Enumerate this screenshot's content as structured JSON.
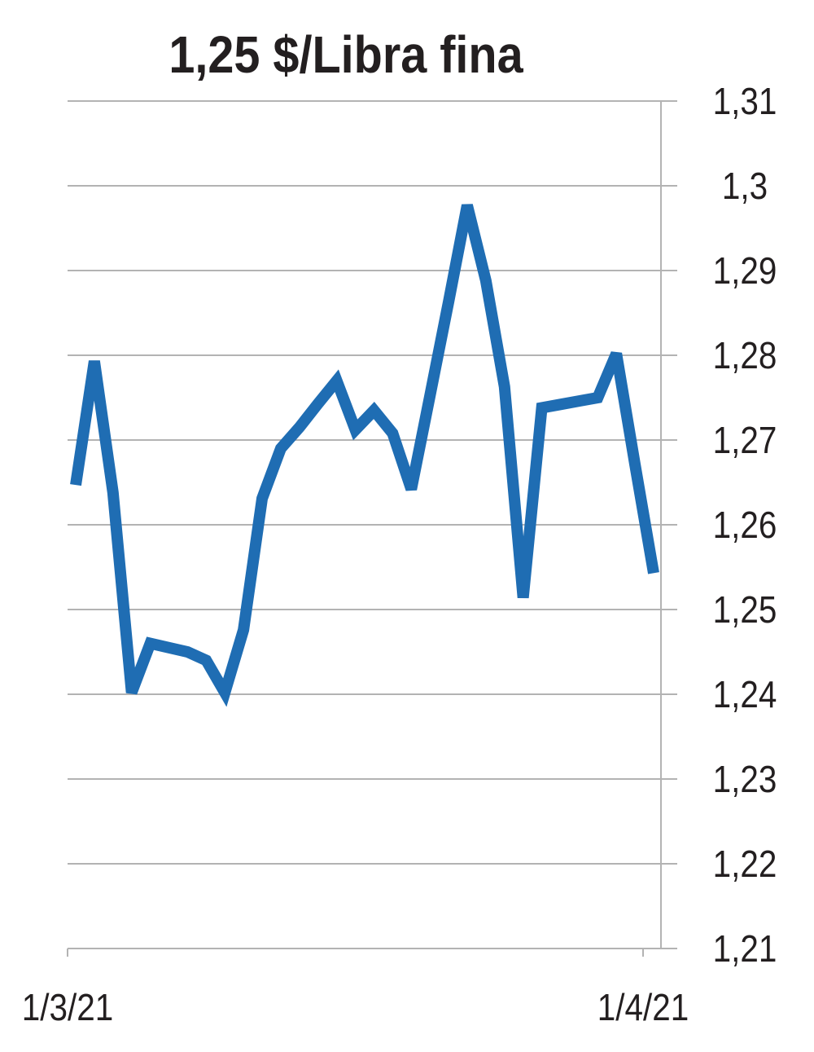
{
  "chart_data": {
    "type": "line",
    "title": "1,25 $/Libra fina",
    "categories": [
      "1/3/21",
      null,
      null,
      null,
      null,
      null,
      null,
      null,
      null,
      null,
      null,
      null,
      null,
      null,
      null,
      null,
      null,
      null,
      null,
      null,
      null,
      null,
      null,
      null,
      null,
      null,
      null,
      null,
      null,
      null,
      null,
      "1/4/21"
    ],
    "series": [
      {
        "color": "#1f6db3",
        "values": [
          1.2647,
          1.2793,
          1.2638,
          1.2402,
          1.246,
          1.2455,
          1.245,
          1.244,
          1.2402,
          1.2476,
          1.2631,
          1.269,
          1.2715,
          1.2743,
          1.277,
          1.2712,
          1.2735,
          1.2708,
          1.2642,
          1.2752,
          1.2863,
          1.2977,
          1.2888,
          1.2763,
          1.2514,
          1.2738,
          1.2742,
          1.2746,
          1.275,
          1.2802,
          1.2671,
          1.2543
        ]
      }
    ],
    "ylim": [
      1.21,
      1.31
    ],
    "yticks": [
      {
        "value": 1.21,
        "label": "1,21"
      },
      {
        "value": 1.22,
        "label": "1,22"
      },
      {
        "value": 1.23,
        "label": "1,23"
      },
      {
        "value": 1.24,
        "label": "1,24"
      },
      {
        "value": 1.25,
        "label": "1,25"
      },
      {
        "value": 1.26,
        "label": "1,26"
      },
      {
        "value": 1.27,
        "label": "1,27"
      },
      {
        "value": 1.28,
        "label": "1,28"
      },
      {
        "value": 1.29,
        "label": "1,29"
      },
      {
        "value": 1.3,
        "label": "1,3"
      },
      {
        "value": 1.31,
        "label": "1,31"
      }
    ],
    "y_axis_side": "right",
    "grid": true
  }
}
